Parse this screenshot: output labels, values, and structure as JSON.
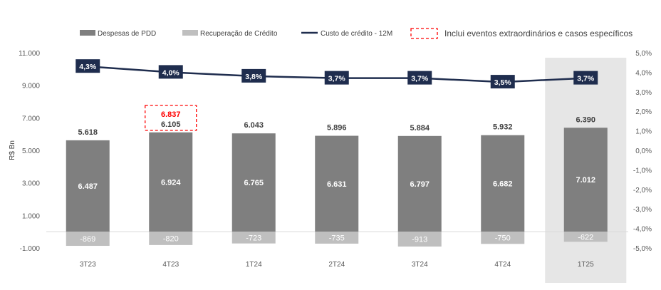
{
  "chart_data": {
    "type": "bar",
    "categories": [
      "3T23",
      "4T23",
      "1T24",
      "2T24",
      "3T24",
      "4T24",
      "1T25"
    ],
    "ylabel": "R$ Bn",
    "ylim": [
      -1000,
      11000
    ],
    "y_ticks": [
      "11.000",
      "9.000",
      "7.000",
      "5.000",
      "3.000",
      "1.000",
      "-1.000"
    ],
    "y_tick_values": [
      11000,
      9000,
      7000,
      5000,
      3000,
      1000,
      -1000
    ],
    "y2lim": [
      -5.0,
      5.0
    ],
    "y2_ticks": [
      "5,0%",
      "4,0%",
      "3,0%",
      "2,0%",
      "1,0%",
      "0,0%",
      "-1,0%",
      "-2,0%",
      "-3,0%",
      "-4,0%",
      "-5,0%"
    ],
    "y2_tick_values": [
      5,
      4,
      3,
      2,
      1,
      0,
      -1,
      -2,
      -3,
      -4,
      -5
    ],
    "legend": {
      "pdd": "Despesas de PDD",
      "recovery": "Recuperação de Crédito",
      "cost": "Custo de crédito - 12M",
      "extraordinary": "Inclui eventos extraordinários e casos específicos"
    },
    "series": [
      {
        "name": "Despesas de PDD",
        "values": [
          6487,
          6924,
          6765,
          6631,
          6797,
          6682,
          7012
        ],
        "labels": [
          "6.487",
          "6.924",
          "6.765",
          "6.631",
          "6.797",
          "6.682",
          "7.012"
        ]
      },
      {
        "name": "Recuperação de Crédito",
        "values": [
          -869,
          -820,
          -723,
          -735,
          -913,
          -750,
          -622
        ],
        "labels": [
          "-869",
          "-820",
          "-723",
          "-735",
          "-913",
          "-750",
          "-622"
        ]
      },
      {
        "name": "Custo de crédito - 12M",
        "axis": "right",
        "values": [
          4.3,
          4.0,
          3.8,
          3.7,
          3.7,
          3.5,
          3.7
        ],
        "labels": [
          "4,3%",
          "4,0%",
          "3,8%",
          "3,7%",
          "3,7%",
          "3,5%",
          "3,7%"
        ]
      }
    ],
    "net_values": [
      5618,
      6105,
      6043,
      5896,
      5884,
      5932,
      6390
    ],
    "net_labels": [
      "5.618",
      "6.105",
      "6.043",
      "5.896",
      "5.884",
      "5.932",
      "6.390"
    ],
    "extraordinary": {
      "category_index": 1,
      "value": 6837,
      "label": "6.837"
    },
    "highlight_index": 6,
    "colors": {
      "pdd": "#7f7f7f",
      "recovery": "#bfbfbf",
      "cost": "#1f2d4e",
      "extraordinary": "#ff0000",
      "highlight": "#e6e6e6",
      "text": "#404040",
      "axis": "#595959",
      "zero_line": "#d9d9d9"
    }
  }
}
